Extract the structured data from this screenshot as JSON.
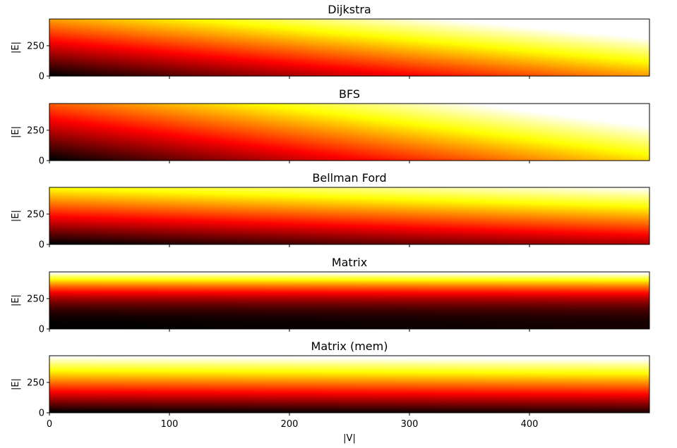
{
  "chart_data": [
    {
      "type": "heatmap",
      "title": "Dijkstra",
      "ylabel": "|E|",
      "xlabel": "",
      "xlim": [
        0,
        500
      ],
      "ylim": [
        0,
        470
      ],
      "yticks": [
        "0",
        "250"
      ],
      "xticks": [
        0,
        100,
        200,
        300,
        400
      ],
      "colormap": "hot",
      "grid": false,
      "x_weight": 0.6,
      "y_weight": 0.6
    },
    {
      "type": "heatmap",
      "title": "BFS",
      "ylabel": "|E|",
      "xlabel": "",
      "xlim": [
        0,
        500
      ],
      "ylim": [
        0,
        470
      ],
      "yticks": [
        "0",
        "250"
      ],
      "xticks": [
        0,
        100,
        200,
        300,
        400
      ],
      "colormap": "hot",
      "grid": false,
      "x_weight": 0.7,
      "y_weight": 0.5
    },
    {
      "type": "heatmap",
      "title": "Bellman Ford",
      "ylabel": "|E|",
      "xlabel": "",
      "xlim": [
        0,
        500
      ],
      "ylim": [
        0,
        470
      ],
      "yticks": [
        "0",
        "250"
      ],
      "xticks": [
        0,
        100,
        200,
        300,
        400
      ],
      "colormap": "hot",
      "grid": false,
      "x_weight": 0.25,
      "y_weight": 0.75
    },
    {
      "type": "heatmap",
      "title": "Matrix",
      "ylabel": "|E|",
      "xlabel": "",
      "xlim": [
        0,
        500
      ],
      "ylim": [
        0,
        470
      ],
      "yticks": [
        "0",
        "250"
      ],
      "xticks": [
        0,
        100,
        200,
        300,
        400
      ],
      "colormap": "hot",
      "grid": false,
      "x_weight": 0.03,
      "y_weight": 1.0,
      "y_power": 2.3
    },
    {
      "type": "heatmap",
      "title": "Matrix (mem)",
      "ylabel": "|E|",
      "xlabel": "|V|",
      "xlim": [
        0,
        500
      ],
      "ylim": [
        0,
        470
      ],
      "yticks": [
        "0",
        "250"
      ],
      "xticks": [
        0,
        100,
        200,
        300,
        400
      ],
      "colormap": "hot",
      "grid": false,
      "x_weight": 0.05,
      "y_weight": 1.0,
      "y_power": 1.0
    }
  ]
}
